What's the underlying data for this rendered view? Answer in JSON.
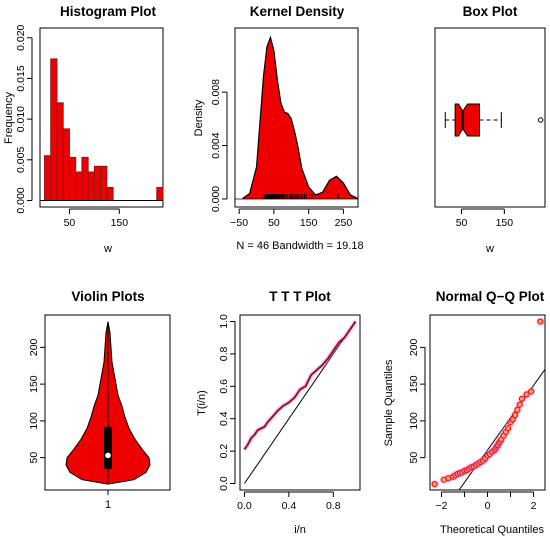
{
  "colors": {
    "fill": "#ee0000",
    "edge": "#8b1a1a",
    "halo": "#ff66ff",
    "line": "#000000",
    "point_fill": "#f4a460"
  },
  "chart_data": [
    {
      "type": "bar",
      "title": "Histogram Plot",
      "xlabel": "w",
      "ylabel": "Frequency",
      "bins": [
        [
          0,
          12.5
        ],
        [
          12.5,
          25
        ],
        [
          25,
          37.5
        ],
        [
          37.5,
          50
        ],
        [
          50,
          62.5
        ],
        [
          62.5,
          75
        ],
        [
          75,
          87.5
        ],
        [
          87.5,
          100
        ],
        [
          100,
          112.5
        ],
        [
          112.5,
          125
        ],
        [
          125,
          137.5
        ],
        [
          137.5,
          150
        ],
        [
          150,
          162.5
        ],
        [
          162.5,
          175
        ],
        [
          175,
          187.5
        ],
        [
          187.5,
          200
        ],
        [
          200,
          212.5
        ],
        [
          212.5,
          225
        ],
        [
          225,
          237.5
        ]
      ],
      "values": [
        0.0055,
        0.0174,
        0.012,
        0.0088,
        0.0053,
        0.0035,
        0.0053,
        0.0035,
        0.0042,
        0.0042,
        0.0016,
        0,
        0,
        0,
        0,
        0,
        0,
        0,
        0.0016
      ],
      "xticks": [
        50,
        150
      ],
      "yticks": [
        0.0,
        0.005,
        0.01,
        0.015,
        0.02
      ],
      "ytick_labels": [
        "0.000",
        "0.005",
        "0.010",
        "0.015",
        "0.020"
      ],
      "xlim": [
        -9,
        237.5
      ],
      "ylim": [
        -0.0008,
        0.0212
      ]
    },
    {
      "type": "area",
      "title": "Kernel Density",
      "xlabel": "N = 46   Bandwidth = 19.18",
      "ylabel": "Density",
      "x": [
        -40,
        -20,
        0,
        10,
        20,
        30,
        40,
        50,
        60,
        70,
        80,
        90,
        100,
        110,
        120,
        130,
        150,
        170,
        190,
        210,
        230,
        250,
        270,
        290
      ],
      "y": [
        5e-05,
        0.0004,
        0.0024,
        0.0058,
        0.0092,
        0.0114,
        0.0121,
        0.0111,
        0.0089,
        0.0072,
        0.0065,
        0.0064,
        0.006,
        0.005,
        0.0038,
        0.0023,
        0.0009,
        0.0003,
        0.0005,
        0.0014,
        0.0017,
        0.0012,
        0.0003,
        5e-05
      ],
      "rug": [
        14,
        22,
        26,
        28,
        30,
        33,
        35,
        37,
        39,
        40,
        42,
        44,
        46,
        47,
        49,
        51,
        53,
        55,
        58,
        60,
        62,
        64,
        67,
        70,
        72,
        75,
        78,
        81,
        84,
        88,
        90,
        95,
        98,
        101,
        104,
        108,
        112,
        116,
        120,
        125,
        130,
        133,
        138,
        143,
        160,
        235
      ],
      "xticks": [
        -50,
        50,
        150,
        250
      ],
      "tick_labels": [
        "−50",
        "50",
        "150",
        "250"
      ],
      "yticks": [
        0.0,
        0.004,
        0.008
      ],
      "ytick_labels": [
        "0.000",
        "0.004",
        "0.008"
      ],
      "xlim": [
        -62,
        292
      ],
      "ylim": [
        -0.0006,
        0.0128
      ]
    },
    {
      "type": "box",
      "title": "Box Plot",
      "xlabel": "w",
      "whisker_low": 12,
      "q1": 35,
      "median": 53,
      "q3": 92,
      "whisker_high": 143,
      "notch_low": 43,
      "notch_high": 64,
      "outliers": [
        235
      ],
      "xticks": [
        50,
        150
      ],
      "xlim": [
        -12,
        245
      ]
    },
    {
      "type": "violin",
      "title": "Violin Plots",
      "xlabel": "1",
      "yticks": [
        50,
        100,
        150,
        200
      ],
      "median": 53,
      "q1": 35,
      "q3": 92,
      "min": 14,
      "max": 235,
      "ylim": [
        6,
        244
      ]
    },
    {
      "type": "line",
      "title": "T T T Plot",
      "xlabel": "i/n",
      "ylabel": "T(i/n)",
      "x": [
        0.0,
        0.03,
        0.06,
        0.09,
        0.12,
        0.15,
        0.18,
        0.21,
        0.25,
        0.3,
        0.35,
        0.4,
        0.45,
        0.5,
        0.55,
        0.6,
        0.65,
        0.7,
        0.75,
        0.8,
        0.85,
        0.9,
        0.95,
        1.0
      ],
      "y": [
        0.21,
        0.24,
        0.28,
        0.3,
        0.33,
        0.34,
        0.35,
        0.38,
        0.41,
        0.45,
        0.48,
        0.5,
        0.53,
        0.58,
        0.6,
        0.67,
        0.7,
        0.73,
        0.77,
        0.82,
        0.87,
        0.9,
        0.95,
        1.0
      ],
      "reference": [
        [
          0,
          0
        ],
        [
          1,
          1
        ]
      ],
      "xticks": [
        0.0,
        0.4,
        0.8
      ],
      "xtick_labels": [
        "0.0",
        "0.4",
        "0.8"
      ],
      "yticks": [
        0.0,
        0.2,
        0.4,
        0.6,
        0.8,
        1.0
      ],
      "ytick_labels": [
        "0.0",
        "0.2",
        "0.4",
        "0.6",
        "0.8",
        "1.0"
      ],
      "xlim": [
        -0.04,
        1.04
      ],
      "ylim": [
        -0.04,
        1.04
      ]
    },
    {
      "type": "scatter",
      "title": "Normal Q−Q Plot",
      "xlabel": "Theoretical Quantiles",
      "ylabel": "Sample Quantiles",
      "x": [
        -2.3,
        -1.9,
        -1.7,
        -1.5,
        -1.4,
        -1.3,
        -1.2,
        -1.1,
        -1.0,
        -0.9,
        -0.8,
        -0.7,
        -0.6,
        -0.5,
        -0.4,
        -0.3,
        -0.2,
        -0.1,
        0.0,
        0.1,
        0.2,
        0.3,
        0.35,
        0.4,
        0.45,
        0.5,
        0.55,
        0.6,
        0.7,
        0.8,
        0.9,
        1.0,
        1.1,
        1.2,
        1.3,
        1.4,
        1.5,
        1.7,
        1.9,
        2.3
      ],
      "y": [
        14,
        20,
        22,
        24,
        26,
        28,
        29,
        30,
        32,
        33,
        35,
        37,
        38,
        40,
        42,
        44,
        46,
        49,
        53,
        55,
        58,
        60,
        62,
        65,
        67,
        70,
        72,
        75,
        80,
        85,
        90,
        98,
        102,
        108,
        115,
        122,
        130,
        136,
        140,
        235
      ],
      "line": [
        [
          -1.6,
          -10
        ],
        [
          2.5,
          170
        ]
      ],
      "xticks": [
        -2,
        -1,
        0,
        1,
        2
      ],
      "tick_labels": [
        "−2",
        "",
        "0",
        "",
        "2"
      ],
      "yticks": [
        50,
        100,
        150,
        200
      ],
      "xlim": [
        -2.5,
        2.5
      ],
      "ylim": [
        6,
        244
      ]
    }
  ]
}
